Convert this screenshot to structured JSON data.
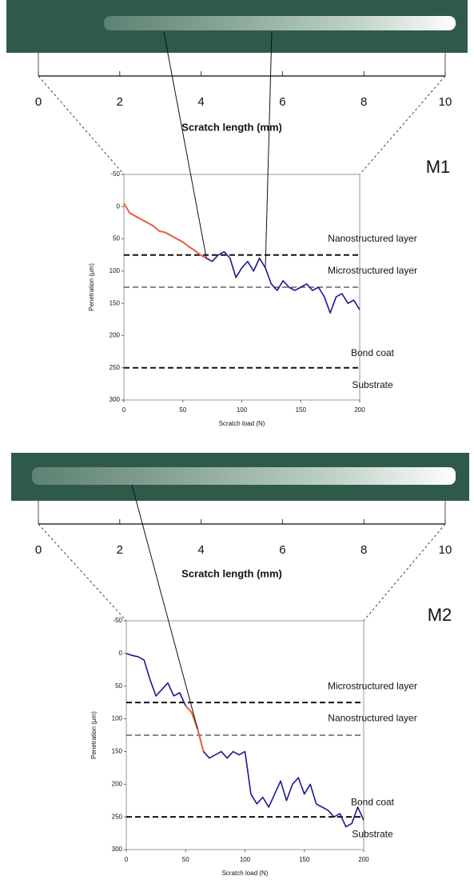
{
  "chart_data": [
    {
      "type": "line",
      "title": "M1",
      "scale_label": "Scratch length (mm)",
      "scale_lim": [
        0,
        10
      ],
      "scale_ticks": [
        0,
        2,
        4,
        6,
        8,
        10
      ],
      "xlabel": "Scratch load (N)",
      "ylabel": "Penetration (µm)",
      "xlim": [
        0,
        200
      ],
      "xticks": [
        0,
        50,
        100,
        150,
        200
      ],
      "ylim": [
        -50,
        300
      ],
      "yticks": [
        -50,
        0,
        50,
        100,
        150,
        200,
        250,
        300
      ],
      "y_inverted": true,
      "hlines": [
        75,
        125,
        250
      ],
      "zone_labels": [
        "Nanostructured layer",
        "Microstructured layer",
        "Bond coat",
        "Substrate"
      ],
      "x": [
        0,
        5,
        10,
        15,
        20,
        25,
        30,
        35,
        40,
        45,
        50,
        55,
        60,
        65,
        70,
        75,
        80,
        85,
        90,
        95,
        100,
        105,
        110,
        115,
        120,
        125,
        130,
        135,
        140,
        145,
        150,
        155,
        160,
        165,
        170,
        175,
        180,
        185,
        190,
        195,
        200
      ],
      "series": [
        {
          "color": "#1a1a8c",
          "values": [
            -5,
            10,
            15,
            20,
            25,
            30,
            38,
            40,
            45,
            50,
            55,
            62,
            68,
            75,
            80,
            85,
            75,
            70,
            80,
            110,
            95,
            85,
            100,
            80,
            95,
            120,
            130,
            115,
            125,
            130,
            125,
            120,
            130,
            125,
            140,
            165,
            140,
            135,
            150,
            145,
            160
          ]
        },
        {
          "color": "#e8603c",
          "values": [
            -5,
            10,
            15,
            20,
            25,
            30,
            38,
            40,
            45,
            50,
            55,
            62,
            68,
            75,
            80,
            null,
            null,
            null,
            null,
            null,
            null,
            null,
            null,
            null,
            null,
            null,
            null,
            null,
            null,
            null,
            null,
            null,
            null,
            null,
            null,
            null,
            null,
            null,
            null,
            null,
            null
          ]
        }
      ]
    },
    {
      "type": "line",
      "title": "M2",
      "scale_label": "Scratch length (mm)",
      "scale_lim": [
        0,
        10
      ],
      "scale_ticks": [
        0,
        2,
        4,
        6,
        8,
        10
      ],
      "xlabel": "Scratch load (N)",
      "ylabel": "Penetration (µm)",
      "xlim": [
        0,
        200
      ],
      "xticks": [
        0,
        50,
        100,
        150,
        200
      ],
      "ylim": [
        -50,
        300
      ],
      "yticks": [
        -50,
        0,
        50,
        100,
        150,
        200,
        250,
        300
      ],
      "y_inverted": true,
      "hlines": [
        75,
        125,
        250
      ],
      "zone_labels": [
        "Microstructured layer",
        "Nanostructured layer",
        "Bond coat",
        "Substrate"
      ],
      "x": [
        0,
        5,
        10,
        15,
        20,
        25,
        30,
        35,
        40,
        45,
        50,
        55,
        60,
        65,
        70,
        75,
        80,
        85,
        90,
        95,
        100,
        105,
        110,
        115,
        120,
        125,
        130,
        135,
        140,
        145,
        150,
        155,
        160,
        165,
        170,
        175,
        180,
        185,
        190,
        195,
        200
      ],
      "series": [
        {
          "color": "#1a1a8c",
          "values": [
            0,
            3,
            5,
            10,
            40,
            65,
            55,
            45,
            65,
            60,
            80,
            90,
            115,
            150,
            160,
            155,
            150,
            160,
            150,
            155,
            150,
            215,
            230,
            220,
            235,
            215,
            195,
            225,
            200,
            190,
            215,
            200,
            230,
            235,
            240,
            250,
            245,
            265,
            260,
            235,
            255
          ]
        },
        {
          "color": "#e8603c",
          "values": [
            null,
            null,
            null,
            null,
            null,
            null,
            null,
            null,
            null,
            null,
            80,
            90,
            115,
            150,
            null,
            null,
            null,
            null,
            null,
            null,
            null,
            null,
            null,
            null,
            null,
            null,
            null,
            null,
            null,
            null,
            null,
            null,
            null,
            null,
            null,
            null,
            null,
            null,
            null,
            null,
            null
          ]
        }
      ]
    }
  ]
}
